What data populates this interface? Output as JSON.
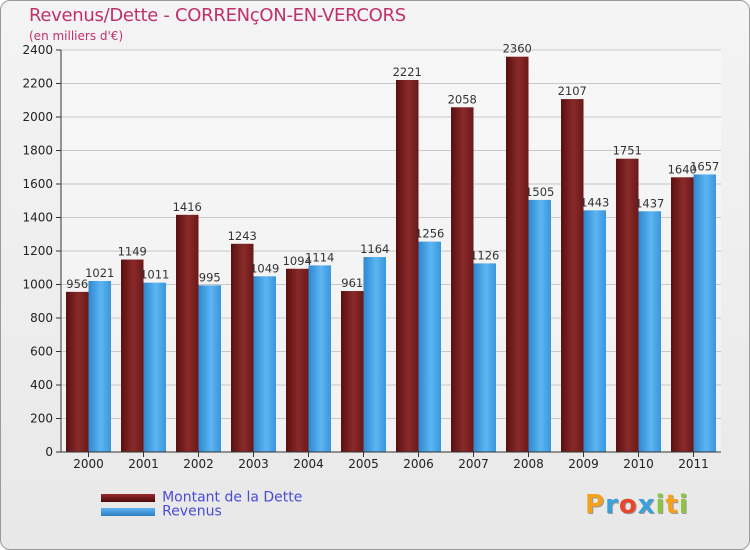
{
  "title": "Revenus/Dette - CORRENçON-EN-VERCORS",
  "subtitle": "(en milliers d'€)",
  "chart_data": {
    "type": "bar",
    "categories": [
      "2000",
      "2001",
      "2002",
      "2003",
      "2004",
      "2005",
      "2006",
      "2007",
      "2008",
      "2009",
      "2010",
      "2011"
    ],
    "series": [
      {
        "name": "Montant de la Dette",
        "color": "#7a1e1e",
        "values": [
          956,
          1149,
          1416,
          1243,
          1094,
          961,
          2221,
          2058,
          2360,
          2107,
          1751,
          1640
        ]
      },
      {
        "name": "Revenus",
        "color": "#4ba3e6",
        "values": [
          1021,
          1011,
          995,
          1049,
          1114,
          1164,
          1256,
          1126,
          1505,
          1443,
          1437,
          1657
        ]
      }
    ],
    "yticks": [
      "0",
      "200",
      "400",
      "600",
      "800",
      "1000",
      "1200",
      "1400",
      "1600",
      "1800",
      "2000",
      "2200",
      "2400"
    ],
    "ylim": [
      0,
      2400
    ],
    "grid": true,
    "legend": "bottom-left"
  },
  "legend": {
    "debt_label": "Montant de la Dette",
    "revenue_label": "Revenus"
  },
  "logo": {
    "letters": [
      "P",
      "r",
      "o",
      "x",
      "i",
      "t",
      "i"
    ],
    "colors": [
      "#f2a21b",
      "#3aa0d9",
      "#e9452c",
      "#3aa0d9",
      "#8cc63f",
      "#f2a21b",
      "#8cc63f"
    ]
  }
}
